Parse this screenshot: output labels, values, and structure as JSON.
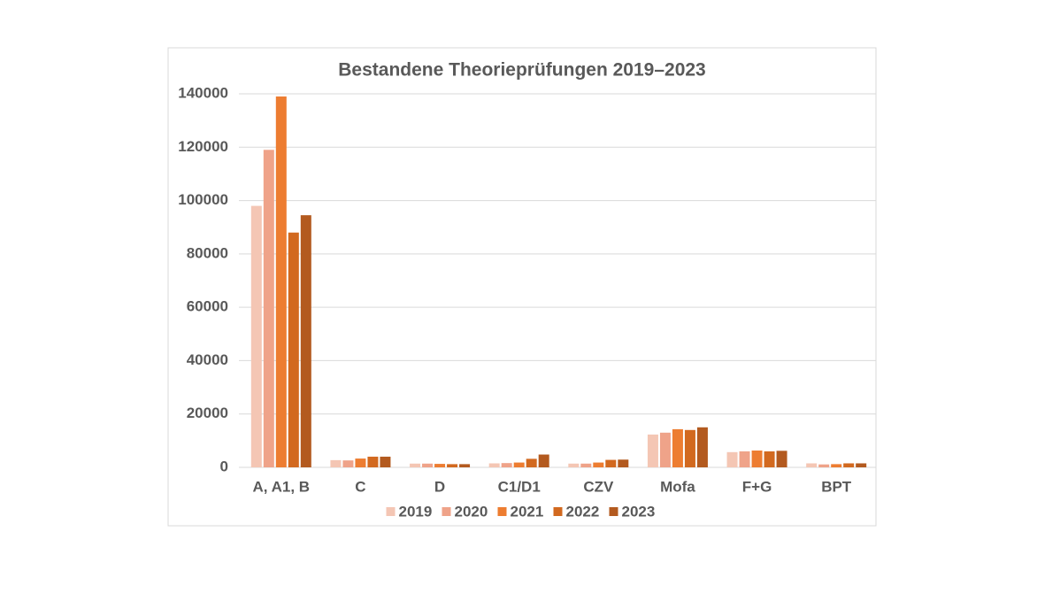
{
  "chart_data": {
    "type": "bar",
    "title": "Bestandene Theorieprüfungen 2019–2023",
    "categories": [
      "A, A1, B",
      "C",
      "D",
      "C1/D1",
      "CZV",
      "Mofa",
      "F+G",
      "BPT"
    ],
    "series": [
      {
        "name": "2019",
        "color": "#f4c6b4",
        "values": [
          98000,
          2700,
          1400,
          1500,
          1400,
          12300,
          5700,
          1500
        ]
      },
      {
        "name": "2020",
        "color": "#efa389",
        "values": [
          119000,
          2600,
          1400,
          1600,
          1400,
          13000,
          6000,
          1100
        ]
      },
      {
        "name": "2021",
        "color": "#ed7d31",
        "values": [
          139000,
          3300,
          1300,
          1800,
          1800,
          14300,
          6300,
          1200
        ]
      },
      {
        "name": "2022",
        "color": "#d2691f",
        "values": [
          88000,
          4000,
          1200,
          3200,
          2800,
          14000,
          6000,
          1500
        ]
      },
      {
        "name": "2023",
        "color": "#b35a1f",
        "values": [
          94500,
          4000,
          1200,
          4800,
          2900,
          15000,
          6200,
          1500
        ]
      }
    ],
    "ylim": [
      0,
      140000
    ],
    "yticks": [
      0,
      20000,
      40000,
      60000,
      80000,
      100000,
      120000,
      140000
    ],
    "grid": true,
    "legend": "bottom"
  }
}
